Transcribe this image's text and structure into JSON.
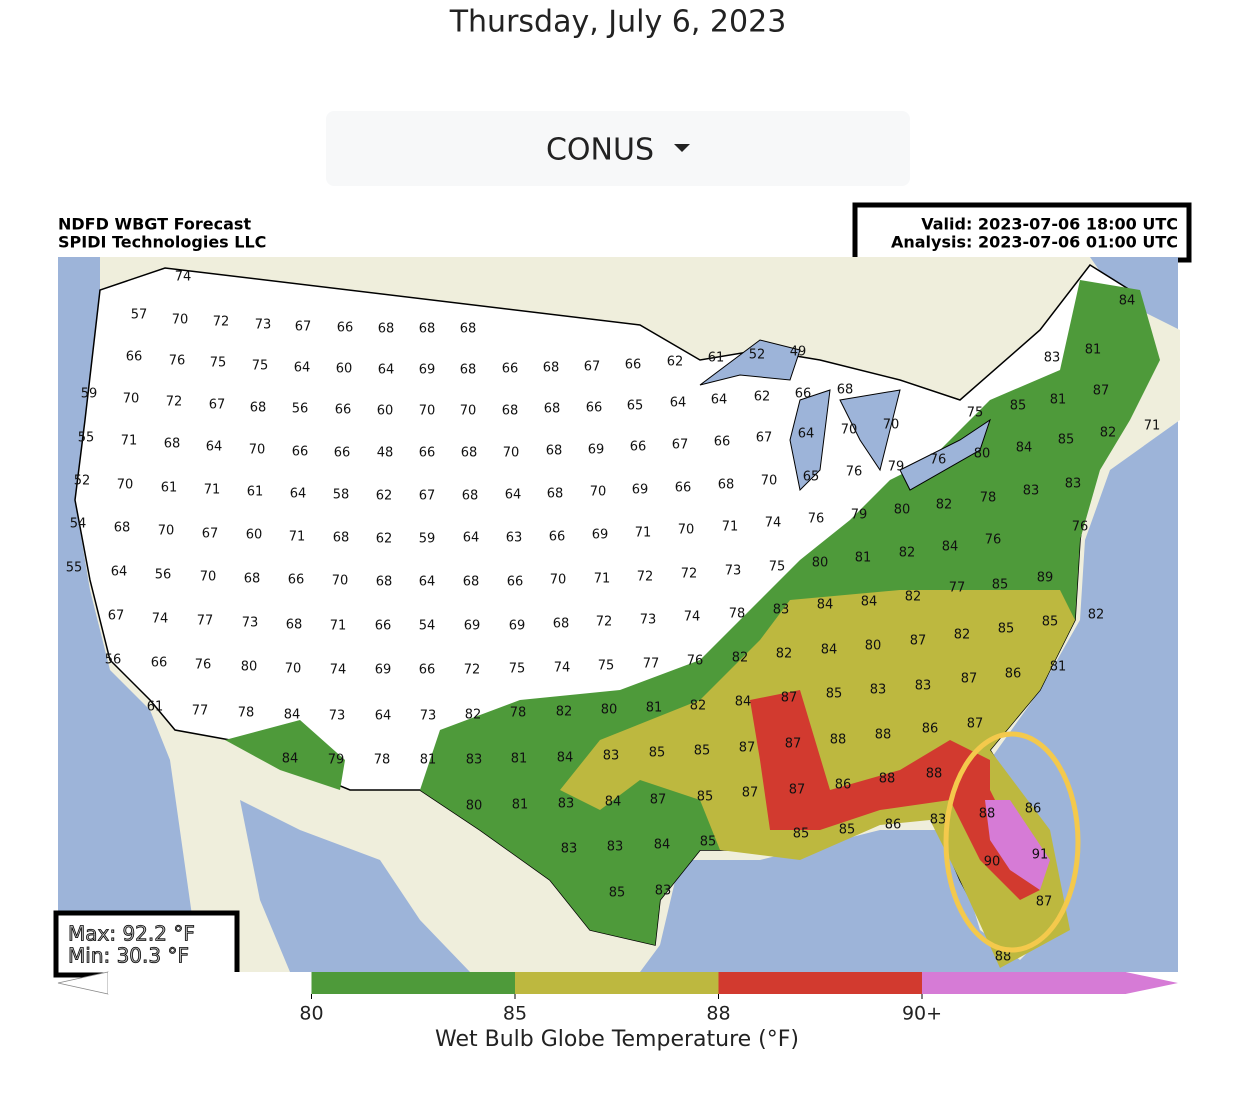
{
  "header": {
    "date": "Thursday, July 6, 2023"
  },
  "dropdown": {
    "label": "CONUS"
  },
  "map": {
    "title": "NDFD WBGT Forecast",
    "credit": "SPIDI Technologies LLC",
    "valid": "Valid: 2023-07-06 18:00 UTC",
    "analysis": "Analysis: 2023-07-06 01:00 UTC",
    "max": "Max: 92.2 °F",
    "min": "Min: 30.3 °F",
    "labels": [
      74,
      57,
      70,
      72,
      73,
      67,
      66,
      68,
      68,
      68,
      84,
      66,
      76,
      75,
      75,
      64,
      60,
      64,
      69,
      68,
      66,
      68,
      67,
      66,
      62,
      61,
      52,
      49,
      81,
      83,
      59,
      70,
      72,
      67,
      68,
      56,
      66,
      60,
      70,
      70,
      68,
      68,
      66,
      65,
      64,
      64,
      62,
      66,
      68,
      87,
      85,
      81,
      75,
      71,
      82,
      85,
      70,
      70,
      64,
      67,
      66,
      67,
      66,
      69,
      68,
      70,
      68,
      66,
      48,
      66,
      66,
      70,
      64,
      68,
      71,
      55,
      84,
      80,
      76,
      79,
      76,
      65,
      70,
      68,
      66,
      69,
      70,
      68,
      64,
      68,
      67,
      62,
      58,
      64,
      61,
      71,
      61,
      70,
      52,
      83,
      83,
      78,
      82,
      80,
      79,
      76,
      74,
      71,
      70,
      71,
      69,
      66,
      63,
      64,
      59,
      62,
      68,
      71,
      60,
      67,
      70,
      68,
      54,
      76,
      76,
      84,
      89,
      85,
      77,
      82,
      84,
      82,
      81,
      80,
      75,
      73,
      72,
      72,
      71,
      70,
      66,
      68,
      64,
      68,
      70,
      66,
      68,
      70,
      56,
      64,
      55,
      82,
      85,
      85,
      82,
      87,
      80,
      84,
      84,
      83,
      78,
      74,
      73,
      72,
      68,
      69,
      69,
      54,
      66,
      71,
      68,
      73,
      77,
      74,
      67,
      81,
      86,
      87,
      82,
      82,
      76,
      77,
      75,
      74,
      75,
      72,
      66,
      69,
      74,
      70,
      80,
      76,
      66,
      56,
      87,
      86,
      83,
      83,
      85,
      87,
      84,
      82,
      81,
      80,
      82,
      78,
      82,
      73,
      64,
      73,
      84,
      78,
      77,
      61,
      88,
      88,
      88,
      87,
      87,
      85,
      85,
      83,
      84,
      81,
      83,
      81,
      78,
      79,
      84,
      86,
      88,
      83,
      86,
      86,
      88,
      87,
      87,
      85,
      87,
      84,
      83,
      81,
      80,
      91,
      90,
      85,
      85,
      85,
      84,
      83,
      83,
      87,
      85,
      83,
      88
    ]
  },
  "colorbar": {
    "label": "Wet Bulb Globe Temperature (°F)",
    "ticks": [
      80,
      85,
      88,
      {
        "value": 90,
        "label": "90+"
      }
    ],
    "colors": [
      "#ffffff",
      "#4e9a3a",
      "#bdb83f",
      "#d23a2f",
      "#d67bd6"
    ]
  }
}
